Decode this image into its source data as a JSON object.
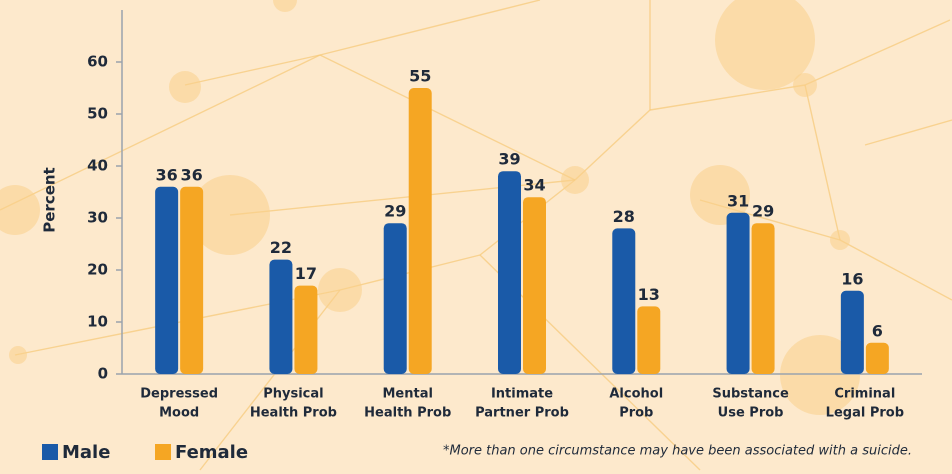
{
  "chart_data": {
    "type": "bar",
    "categories": [
      [
        "Depressed",
        "Mood"
      ],
      [
        "Physical",
        "Health Prob"
      ],
      [
        "Mental",
        "Health Prob"
      ],
      [
        "Intimate",
        "Partner Prob"
      ],
      [
        "Alcohol",
        "Prob"
      ],
      [
        "Substance",
        "Use Prob"
      ],
      [
        "Criminal",
        "Legal Prob"
      ]
    ],
    "series": [
      {
        "name": "Male",
        "color": "#1a5aa8",
        "values": [
          36,
          22,
          29,
          39,
          28,
          31,
          16
        ]
      },
      {
        "name": "Female",
        "color": "#f5a623",
        "values": [
          36,
          17,
          55,
          34,
          13,
          29,
          6
        ]
      }
    ],
    "ylabel": "Percent",
    "ylim": [
      0,
      70
    ],
    "yticks": [
      0,
      10,
      20,
      30,
      40,
      50,
      60
    ],
    "footnote": "*More than one circumstance may have been associated with a suicide."
  }
}
